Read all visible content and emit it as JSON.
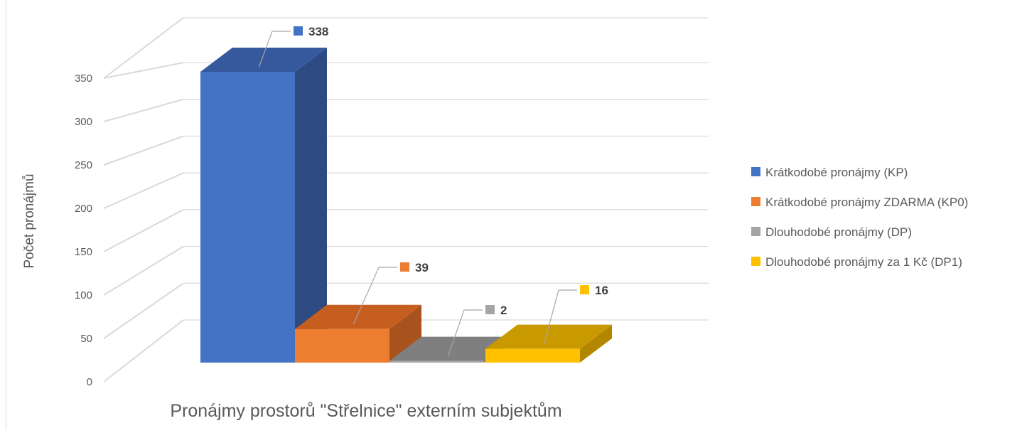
{
  "chart_data": {
    "type": "bar",
    "three_d": true,
    "title": "",
    "xlabel": "Pronájmy prostorů \"Střelnice\" externím subjektům",
    "ylabel": "Počet pronájmů",
    "ylim": [
      0,
      350
    ],
    "yticks": [
      0,
      50,
      100,
      150,
      200,
      250,
      300,
      350
    ],
    "grid": true,
    "legend_position": "right",
    "data_labels": true,
    "series": [
      {
        "name": "Krátkodobé pronájmy (KP)",
        "value": 338,
        "color": "#4472C4",
        "side_color": "#2E4A82",
        "top_color": "#36589D"
      },
      {
        "name": "Krátkodobé pronájmy ZDARMA (KP0)",
        "value": 39,
        "color": "#ED7D31",
        "side_color": "#A8531D",
        "top_color": "#C65E20"
      },
      {
        "name": "Dlouhodobé pronájmy (DP)",
        "value": 2,
        "color": "#A5A5A5",
        "side_color": "#707070",
        "top_color": "#7F7F7F"
      },
      {
        "name": "Dlouhodobé pronájmy za 1 Kč (DP1)",
        "value": 16,
        "color": "#FFC000",
        "side_color": "#B38600",
        "top_color": "#C99A00"
      }
    ],
    "gridline_color": "#D9D9D9",
    "axis_text_color": "#595959"
  }
}
